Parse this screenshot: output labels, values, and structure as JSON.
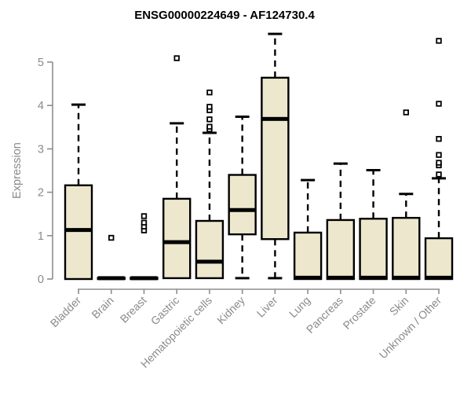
{
  "chart_data": {
    "type": "boxplot",
    "title": "ENSG00000224649 - AF124730.4",
    "ylabel": "Expression",
    "xlabel": "",
    "ylim": [
      0,
      5.8
    ],
    "yticks": [
      "0",
      "1",
      "2",
      "3",
      "4",
      "5"
    ],
    "grid": false,
    "legend": false,
    "categories": [
      "Bladder",
      "Brain",
      "Breast",
      "Gastric",
      "Hematopoietic cells",
      "Kidney",
      "Liver",
      "Lung",
      "Pancreas",
      "Prostate",
      "Skin",
      "Unknown / Other"
    ],
    "boxes": [
      {
        "category": "Bladder",
        "whisker_low": 0,
        "q1": 0,
        "median": 1.13,
        "q3": 2.16,
        "whisker_high": 4.02,
        "outliers": []
      },
      {
        "category": "Brain",
        "whisker_low": 0,
        "q1": 0,
        "median": 0.02,
        "q3": 0.03,
        "whisker_high": 0.03,
        "outliers": [
          0.95
        ]
      },
      {
        "category": "Breast",
        "whisker_low": 0,
        "q1": 0,
        "median": 0.02,
        "q3": 0.03,
        "whisker_high": 0.03,
        "outliers": [
          1.12,
          1.21,
          1.3,
          1.45
        ]
      },
      {
        "category": "Gastric",
        "whisker_low": 0,
        "q1": 0.02,
        "median": 0.85,
        "q3": 1.85,
        "whisker_high": 3.59,
        "outliers": [
          5.09
        ]
      },
      {
        "category": "Hematopoietic cells",
        "whisker_low": 0,
        "q1": 0.02,
        "median": 0.4,
        "q3": 1.34,
        "whisker_high": 3.37,
        "outliers": [
          3.45,
          3.51,
          3.68,
          3.89,
          3.97,
          4.3
        ]
      },
      {
        "category": "Kidney",
        "whisker_low": 0.02,
        "q1": 1.03,
        "median": 1.59,
        "q3": 2.4,
        "whisker_high": 3.74,
        "outliers": []
      },
      {
        "category": "Liver",
        "whisker_low": 0.02,
        "q1": 0.92,
        "median": 3.69,
        "q3": 4.64,
        "whisker_high": 5.65,
        "outliers": []
      },
      {
        "category": "Lung",
        "whisker_low": 0,
        "q1": 0,
        "median": 0.03,
        "q3": 1.07,
        "whisker_high": 2.28,
        "outliers": []
      },
      {
        "category": "Pancreas",
        "whisker_low": 0,
        "q1": 0,
        "median": 0.03,
        "q3": 1.36,
        "whisker_high": 2.66,
        "outliers": []
      },
      {
        "category": "Prostate",
        "whisker_low": 0,
        "q1": 0,
        "median": 0.03,
        "q3": 1.39,
        "whisker_high": 2.51,
        "outliers": []
      },
      {
        "category": "Skin",
        "whisker_low": 0,
        "q1": 0,
        "median": 0.03,
        "q3": 1.41,
        "whisker_high": 1.96,
        "outliers": [
          3.84
        ]
      },
      {
        "category": "Unknown / Other",
        "whisker_low": 0,
        "q1": 0,
        "median": 0.03,
        "q3": 0.94,
        "whisker_high": 2.32,
        "outliers": [
          2.41,
          2.62,
          2.68,
          2.86,
          3.23,
          4.04,
          5.49
        ]
      }
    ],
    "colors": {
      "background": "#FFFFFF",
      "box_fill": "#EDE8CD",
      "box_border": "#000000",
      "median": "#000000",
      "whisker": "#000000",
      "outlier": "#000000",
      "axis_line": "#8E8E8E",
      "tick_text": "#8A8A8A",
      "title_text": "#000000"
    }
  }
}
